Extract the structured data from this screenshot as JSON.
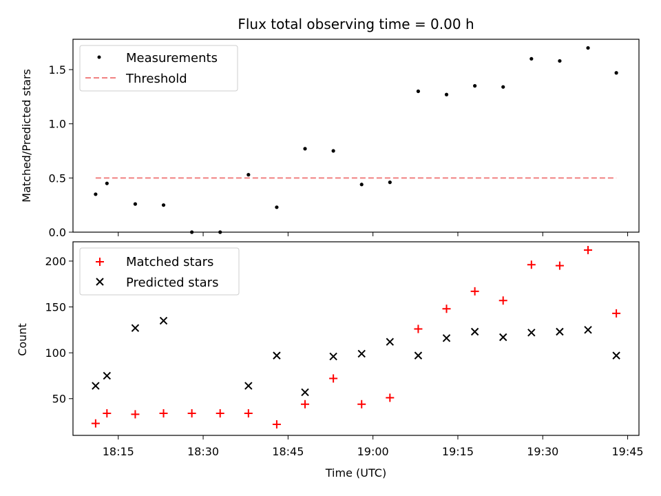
{
  "chart_data": [
    {
      "type": "scatter",
      "title": "Flux total observing time = 0.00 h",
      "xlabel": "",
      "ylabel": "Matched/Predicted stars",
      "ylim": [
        0,
        1.78
      ],
      "yticks": [
        "0.0",
        "0.5",
        "1.0",
        "1.5"
      ],
      "grid": false,
      "legend": "upper left",
      "series": [
        {
          "name": "Measurements",
          "marker": "dot",
          "color": "#000000",
          "x": [
            "18:11",
            "18:13",
            "18:18",
            "18:23",
            "18:28",
            "18:33",
            "18:38",
            "18:43",
            "18:48",
            "18:53",
            "18:58",
            "19:03",
            "19:08",
            "19:13",
            "19:18",
            "19:23",
            "19:28",
            "19:33",
            "19:38",
            "19:43"
          ],
          "y": [
            0.35,
            0.45,
            0.26,
            0.25,
            0.0,
            0.0,
            0.53,
            0.23,
            0.77,
            0.75,
            0.44,
            0.46,
            1.3,
            1.27,
            1.35,
            1.34,
            1.6,
            1.58,
            1.7,
            1.47
          ]
        },
        {
          "name": "Threshold",
          "style": "dashed",
          "color": "#f08080",
          "x": [
            "18:11",
            "19:43"
          ],
          "y": [
            0.5,
            0.5
          ]
        }
      ]
    },
    {
      "type": "scatter",
      "title": "",
      "xlabel": "Time (UTC)",
      "ylabel": "Count",
      "ylim": [
        10,
        221
      ],
      "yticks": [
        "50",
        "100",
        "150",
        "200"
      ],
      "xticks": [
        "18:15",
        "18:30",
        "18:45",
        "19:00",
        "19:15",
        "19:30",
        "19:45"
      ],
      "grid": false,
      "legend": "upper left",
      "series": [
        {
          "name": "Matched stars",
          "marker": "plus",
          "color": "#ff0000",
          "x": [
            "18:11",
            "18:13",
            "18:18",
            "18:23",
            "18:28",
            "18:33",
            "18:38",
            "18:43",
            "18:48",
            "18:53",
            "18:58",
            "19:03",
            "19:08",
            "19:13",
            "19:18",
            "19:23",
            "19:28",
            "19:33",
            "19:38",
            "19:43"
          ],
          "y": [
            23,
            34,
            33,
            34,
            34,
            34,
            34,
            22,
            44,
            72,
            44,
            51,
            126,
            148,
            167,
            157,
            196,
            195,
            212,
            143
          ]
        },
        {
          "name": "Predicted stars",
          "marker": "x",
          "color": "#000000",
          "x": [
            "18:11",
            "18:13",
            "18:18",
            "18:23",
            "18:28",
            "18:33",
            "18:38",
            "18:43",
            "18:48",
            "18:53",
            "18:58",
            "19:03",
            "19:08",
            "19:13",
            "19:18",
            "19:23",
            "19:28",
            "19:33",
            "19:38",
            "19:43"
          ],
          "y": [
            64,
            75,
            127,
            135,
            null,
            null,
            64,
            97,
            57,
            96,
            99,
            112,
            97,
            116,
            123,
            117,
            122,
            123,
            125,
            97
          ]
        }
      ]
    }
  ]
}
